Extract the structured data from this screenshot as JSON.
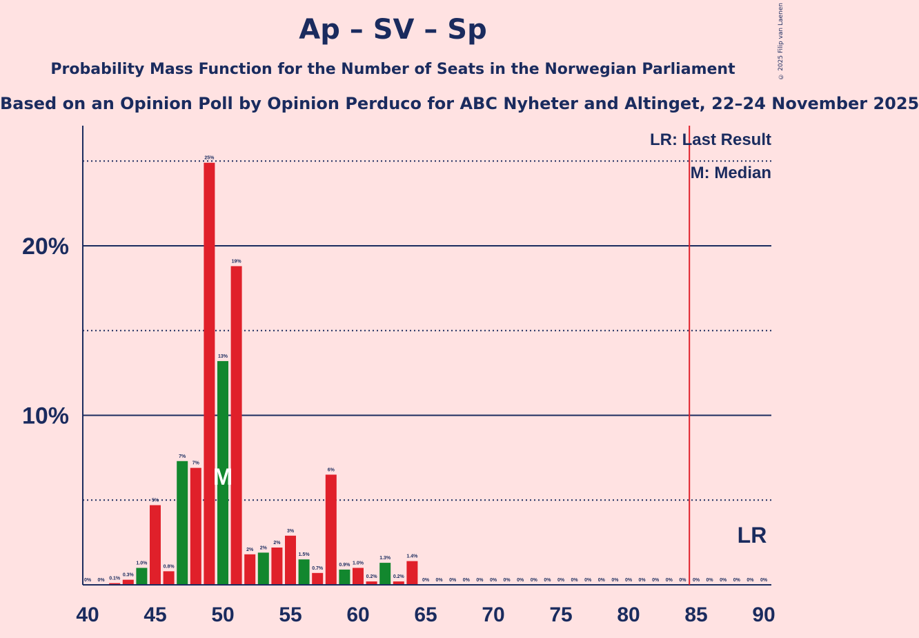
{
  "title": "Ap – SV – Sp",
  "subtitle": "Probability Mass Function for the Number of Seats in the Norwegian Parliament",
  "subsubtitle": "Based on an Opinion Poll by Opinion Perduco for ABC Nyheter and Altinget, 22–24 November 2025",
  "copyright": "© 2025 Filip van Laenen",
  "legend": {
    "last_result": "LR: Last Result",
    "median": "M: Median",
    "lr_marker": "LR",
    "median_marker": "M"
  },
  "colors": {
    "background": "#ffe2e2",
    "red": "#e0202a",
    "green": "#12872e",
    "text": "#1a2b5e",
    "last_result_line": "#e0202a"
  },
  "chart_data": {
    "type": "bar",
    "x": [
      40,
      41,
      42,
      43,
      44,
      45,
      46,
      47,
      48,
      49,
      50,
      51,
      52,
      53,
      54,
      55,
      56,
      57,
      58,
      59,
      60,
      61,
      62,
      63,
      64,
      65,
      66,
      67,
      68,
      69,
      70,
      71,
      72,
      73,
      74,
      75,
      76,
      77,
      78,
      79,
      80,
      81,
      82,
      83,
      84,
      85,
      86,
      87,
      88,
      89,
      90
    ],
    "values": [
      0,
      0,
      0.1,
      0.3,
      1.0,
      4.7,
      0.8,
      7.3,
      6.9,
      24.9,
      13.2,
      18.8,
      1.8,
      1.9,
      2.2,
      2.9,
      1.5,
      0.7,
      6.5,
      0.9,
      1.0,
      0.2,
      1.3,
      0.2,
      1.4,
      0,
      0,
      0,
      0,
      0,
      0,
      0,
      0,
      0,
      0,
      0,
      0,
      0,
      0,
      0,
      0,
      0,
      0,
      0,
      0,
      0,
      0,
      0,
      0,
      0,
      0
    ],
    "labels": [
      "0%",
      "0%",
      "0.1%",
      "0.3%",
      "1.0%",
      "5%",
      "0.8%",
      "7%",
      "7%",
      "25%",
      "13%",
      "19%",
      "2%",
      "2%",
      "2%",
      "3%",
      "1.5%",
      "0.7%",
      "6%",
      "0.9%",
      "1.0%",
      "0.2%",
      "1.3%",
      "0.2%",
      "1.4%",
      "0%",
      "0%",
      "0%",
      "0%",
      "0%",
      "0%",
      "0%",
      "0%",
      "0%",
      "0%",
      "0%",
      "0%",
      "0%",
      "0%",
      "0%",
      "0%",
      "0%",
      "0%",
      "0%",
      "0%",
      "0%",
      "0%",
      "0%",
      "0%",
      "0%",
      "0%"
    ],
    "colors": [
      "red",
      "green",
      "red",
      "red",
      "green",
      "red",
      "red",
      "green",
      "red",
      "red",
      "green",
      "red",
      "red",
      "green",
      "red",
      "red",
      "green",
      "red",
      "red",
      "green",
      "red",
      "red",
      "green",
      "red",
      "red",
      "green",
      "red",
      "red",
      "green",
      "red",
      "red",
      "green",
      "red",
      "red",
      "green",
      "red",
      "red",
      "green",
      "red",
      "red",
      "green",
      "red",
      "red",
      "green",
      "red",
      "red",
      "green",
      "red",
      "red",
      "green",
      "red"
    ],
    "xticks": [
      "40",
      "45",
      "50",
      "55",
      "60",
      "65",
      "70",
      "75",
      "80",
      "85",
      "90"
    ],
    "xtick_values": [
      40,
      45,
      50,
      55,
      60,
      65,
      70,
      75,
      80,
      85,
      90
    ],
    "yticks": [
      "10%",
      "20%"
    ],
    "ytick_values": [
      10,
      20
    ],
    "dotted_gridlines": [
      5,
      15,
      25
    ],
    "xlim": [
      40,
      90
    ],
    "ylim": [
      0,
      27
    ],
    "median_seat": 50,
    "last_result_seat": 84.5
  }
}
